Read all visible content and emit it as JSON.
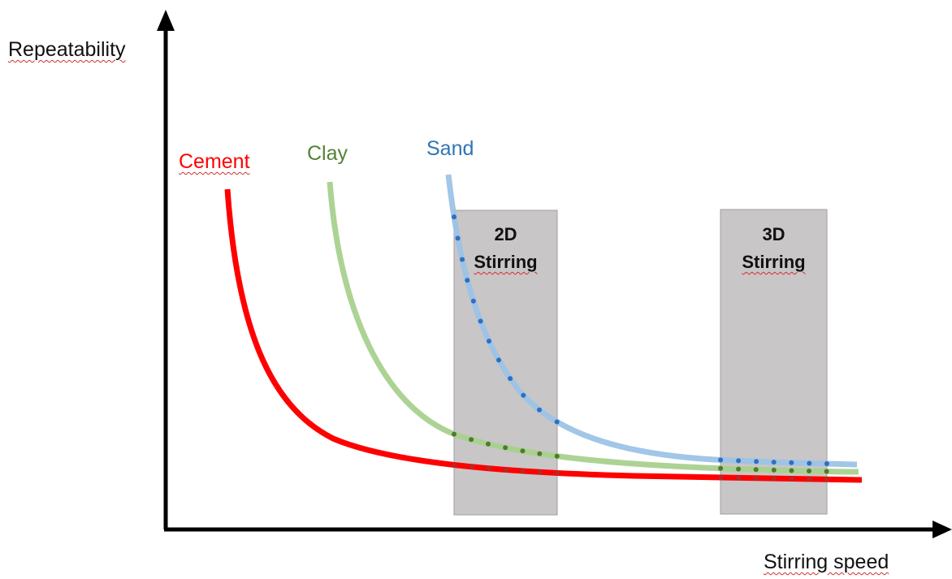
{
  "axes": {
    "y_label": "Repeatability",
    "x_label": "Stirring speed"
  },
  "curves": [
    {
      "key": "cement",
      "label": "Cement",
      "color": "#ff0000",
      "label_color": "#ff0000"
    },
    {
      "key": "clay",
      "label": "Clay",
      "color": "#a9d18e",
      "label_color": "#548235"
    },
    {
      "key": "sand",
      "label": "Sand",
      "color": "#9dc3e6",
      "label_color": "#2e75b6"
    }
  ],
  "regions": [
    {
      "key": "2d",
      "line1": "2D",
      "line2": "Stirring"
    },
    {
      "key": "3d",
      "line1": "3D",
      "line2": "Stirring"
    }
  ],
  "colors": {
    "axis": "#000000",
    "region_fill": "#c9c6c7",
    "region_stroke": "#9f9d9e",
    "cement_dots": "#b22a2a",
    "clay_dots": "#4e7a2c",
    "sand_dots": "#2e6fc2"
  }
}
